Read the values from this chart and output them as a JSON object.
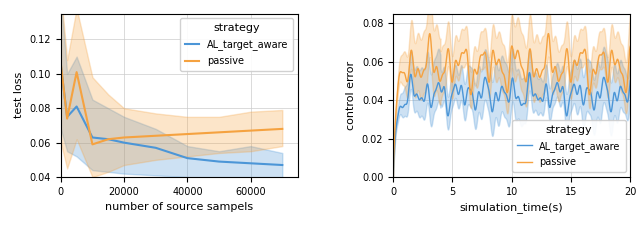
{
  "left": {
    "xlabel": "number of source sampels",
    "ylabel": "test loss",
    "xlim": [
      0,
      75000
    ],
    "ylim": [
      0.04,
      0.135
    ],
    "xticks": [
      0,
      20000,
      40000,
      60000
    ],
    "yticks": [
      0.04,
      0.06,
      0.08,
      0.1,
      0.12
    ],
    "legend_title": "strategy",
    "al_label": "AL_target_aware",
    "passive_label": "passive",
    "al_color": "#4c96d7",
    "passive_color": "#f5a240",
    "al_x": [
      0,
      2000,
      5000,
      10000,
      15000,
      20000,
      30000,
      40000,
      50000,
      60000,
      70000
    ],
    "al_y": [
      0.105,
      0.075,
      0.081,
      0.063,
      0.062,
      0.06,
      0.057,
      0.051,
      0.049,
      0.048,
      0.047
    ],
    "al_y_lo": [
      0.068,
      0.055,
      0.052,
      0.044,
      0.043,
      0.042,
      0.041,
      0.04,
      0.038,
      0.037,
      0.036
    ],
    "al_y_hi": [
      0.145,
      0.1,
      0.11,
      0.085,
      0.08,
      0.075,
      0.068,
      0.058,
      0.055,
      0.058,
      0.054
    ],
    "passive_x": [
      0,
      2000,
      5000,
      10000,
      15000,
      20000,
      30000,
      40000,
      50000,
      60000,
      70000
    ],
    "passive_y": [
      0.106,
      0.074,
      0.101,
      0.059,
      0.062,
      0.063,
      0.064,
      0.065,
      0.066,
      0.067,
      0.068
    ],
    "passive_y_lo": [
      0.06,
      0.045,
      0.062,
      0.04,
      0.043,
      0.047,
      0.05,
      0.052,
      0.054,
      0.055,
      0.058
    ],
    "passive_y_hi": [
      0.148,
      0.108,
      0.138,
      0.098,
      0.088,
      0.08,
      0.077,
      0.075,
      0.075,
      0.078,
      0.079
    ]
  },
  "right": {
    "xlabel": "simulation_time(s)",
    "ylabel": "control error",
    "xlim": [
      0,
      20
    ],
    "ylim": [
      0.0,
      0.085
    ],
    "xticks": [
      0,
      5,
      10,
      15,
      20
    ],
    "yticks": [
      0.0,
      0.02,
      0.04,
      0.06,
      0.08
    ],
    "legend_title": "strategy",
    "al_label": "AL_target_aware",
    "passive_label": "passive",
    "al_color": "#4c96d7",
    "passive_color": "#f5a240"
  },
  "figsize": [
    6.4,
    2.27
  ],
  "dpi": 100
}
